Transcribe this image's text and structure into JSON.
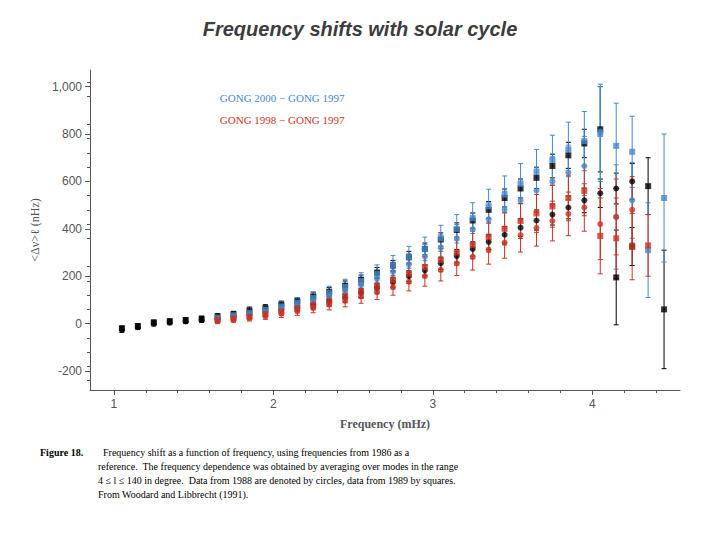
{
  "chart_data": {
    "type": "scatter",
    "title": "Frequency shifts with solar cycle",
    "xlabel": "Frequency (mHz)",
    "ylabel": "<Δν>ℓ (nHz)",
    "xlim": [
      0.85,
      4.55
    ],
    "ylim": [
      -280,
      1070
    ],
    "xticks": [
      1,
      2,
      3,
      4
    ],
    "yticks": [
      -200,
      0,
      200,
      400,
      600,
      800,
      1000
    ],
    "grid": false,
    "annotations": [
      {
        "text": "GONG 2000 − GONG 1997",
        "color": "#4488CC"
      },
      {
        "text": "GONG 1998 − GONG 1997",
        "color": "#CC3322"
      },
      {
        "text": "Figure 18."
      },
      {
        "text": "  Frequency shift as a function of frequency, using frequencies from 1986 as a\nreference.  The frequency dependence was obtained by averaging over modes in the range\n4 ≤ l ≤ 140 in degree.  Data from 1988 are denoted by circles, data from 1989 by squares.\nFrom Woodard and Libbrecht (1991)."
      }
    ],
    "series": [
      {
        "marker": "square",
        "color": "black",
        "x": [
          1.05,
          1.15,
          1.25,
          1.35,
          1.45,
          1.55,
          1.65,
          1.75,
          1.85,
          1.95,
          2.05,
          2.15,
          2.25,
          2.35,
          2.45,
          2.55,
          2.65,
          2.75,
          2.85,
          2.95,
          3.05,
          3.15,
          3.25,
          3.35,
          3.45,
          3.55,
          3.65,
          3.75,
          3.85,
          3.95,
          4.05,
          4.15,
          4.25,
          4.35,
          4.45
        ],
        "values": [
          -20,
          -10,
          5,
          10,
          15,
          20,
          30,
          40,
          55,
          65,
          80,
          95,
          115,
          135,
          160,
          185,
          215,
          245,
          280,
          315,
          355,
          395,
          435,
          480,
          530,
          570,
          615,
          665,
          710,
          760,
          820,
          195,
          325,
          580,
          60
        ],
        "errors": [
          10,
          10,
          10,
          10,
          10,
          12,
          12,
          12,
          15,
          15,
          15,
          15,
          18,
          18,
          20,
          20,
          22,
          22,
          25,
          25,
          28,
          30,
          32,
          35,
          38,
          40,
          45,
          50,
          55,
          60,
          180,
          200,
          80,
          120,
          250
        ]
      },
      {
        "marker": "circle",
        "color": "black",
        "x": [
          1.05,
          1.15,
          1.25,
          1.35,
          1.45,
          1.55,
          1.65,
          1.75,
          1.85,
          1.95,
          2.05,
          2.15,
          2.25,
          2.35,
          2.45,
          2.55,
          2.65,
          2.75,
          2.85,
          2.95,
          3.05,
          3.15,
          3.25,
          3.35,
          3.45,
          3.55,
          3.65,
          3.75,
          3.85,
          3.95,
          4.05,
          4.15,
          4.25
        ],
        "values": [
          -25,
          -15,
          0,
          5,
          10,
          15,
          20,
          28,
          38,
          48,
          58,
          68,
          80,
          95,
          110,
          130,
          150,
          175,
          200,
          225,
          255,
          285,
          315,
          345,
          375,
          405,
          435,
          460,
          490,
          520,
          550,
          570,
          600
        ],
        "errors": [
          12,
          10,
          10,
          10,
          10,
          10,
          12,
          12,
          14,
          14,
          15,
          15,
          17,
          17,
          19,
          19,
          21,
          21,
          23,
          23,
          26,
          28,
          30,
          32,
          35,
          37,
          40,
          44,
          48,
          52,
          60,
          65,
          75
        ]
      },
      {
        "marker": "square",
        "color": "#4488CC",
        "x": [
          1.65,
          1.75,
          1.85,
          1.95,
          2.05,
          2.15,
          2.25,
          2.35,
          2.45,
          2.55,
          2.65,
          2.75,
          2.85,
          2.95,
          3.05,
          3.15,
          3.25,
          3.35,
          3.45,
          3.55,
          3.65,
          3.75,
          3.85,
          3.95,
          4.05,
          4.15,
          4.25,
          4.35,
          4.45
        ],
        "values": [
          25,
          35,
          45,
          58,
          72,
          88,
          108,
          130,
          155,
          180,
          210,
          245,
          280,
          315,
          360,
          400,
          445,
          495,
          545,
          590,
          640,
          690,
          735,
          770,
          800,
          750,
          725,
          310,
          530
        ],
        "errors": [
          12,
          14,
          16,
          18,
          20,
          22,
          25,
          28,
          32,
          35,
          38,
          42,
          46,
          50,
          55,
          60,
          65,
          72,
          78,
          85,
          95,
          105,
          115,
          125,
          200,
          180,
          150,
          200,
          270
        ]
      },
      {
        "marker": "circle",
        "color": "#4488CC",
        "x": [
          1.65,
          1.75,
          1.85,
          1.95,
          2.05,
          2.15,
          2.25,
          2.35,
          2.45,
          2.55,
          2.65,
          2.75,
          2.85,
          2.95,
          3.05,
          3.15,
          3.25,
          3.35,
          3.45,
          3.55,
          3.65,
          3.75,
          3.85,
          3.95,
          4.05,
          4.15,
          4.25
        ],
        "values": [
          20,
          28,
          38,
          50,
          63,
          78,
          95,
          115,
          138,
          162,
          188,
          218,
          250,
          283,
          320,
          358,
          398,
          440,
          480,
          520,
          562,
          600,
          638,
          665,
          810,
          450,
          520
        ],
        "errors": [
          12,
          14,
          16,
          18,
          20,
          22,
          24,
          27,
          30,
          33,
          37,
          41,
          45,
          50,
          55,
          60,
          66,
          72,
          79,
          86,
          95,
          104,
          115,
          125,
          200,
          220,
          160
        ]
      },
      {
        "marker": "square",
        "color": "#CC3322",
        "x": [
          1.65,
          1.75,
          1.85,
          1.95,
          2.05,
          2.15,
          2.25,
          2.35,
          2.45,
          2.55,
          2.65,
          2.75,
          2.85,
          2.95,
          3.05,
          3.15,
          3.25,
          3.35,
          3.45,
          3.55,
          3.65,
          3.75,
          3.85,
          3.95,
          4.05,
          4.15,
          4.25,
          4.35
        ],
        "values": [
          15,
          22,
          30,
          40,
          52,
          65,
          80,
          96,
          115,
          136,
          158,
          183,
          210,
          238,
          268,
          300,
          332,
          365,
          400,
          433,
          465,
          495,
          530,
          560,
          370,
          360,
          325,
          330
        ],
        "errors": [
          10,
          12,
          14,
          16,
          18,
          20,
          22,
          24,
          27,
          30,
          33,
          37,
          41,
          45,
          49,
          53,
          58,
          63,
          68,
          74,
          80,
          88,
          96,
          105,
          160,
          170,
          140,
          130
        ]
      },
      {
        "marker": "circle",
        "color": "#CC3322",
        "x": [
          1.65,
          1.75,
          1.85,
          1.95,
          2.05,
          2.15,
          2.25,
          2.35,
          2.45,
          2.55,
          2.65,
          2.75,
          2.85,
          2.95,
          3.05,
          3.15,
          3.25,
          3.35,
          3.45,
          3.55,
          3.65,
          3.75,
          3.85,
          3.95,
          4.05,
          4.15,
          4.25
        ],
        "values": [
          10,
          17,
          24,
          33,
          43,
          54,
          67,
          81,
          97,
          115,
          134,
          155,
          177,
          201,
          227,
          254,
          282,
          312,
          342,
          373,
          404,
          433,
          463,
          490,
          420,
          450,
          480
        ],
        "errors": [
          10,
          11,
          13,
          15,
          17,
          19,
          21,
          23,
          26,
          29,
          32,
          35,
          39,
          43,
          47,
          51,
          56,
          61,
          66,
          71,
          77,
          84,
          92,
          100,
          150,
          160,
          140
        ]
      }
    ]
  }
}
